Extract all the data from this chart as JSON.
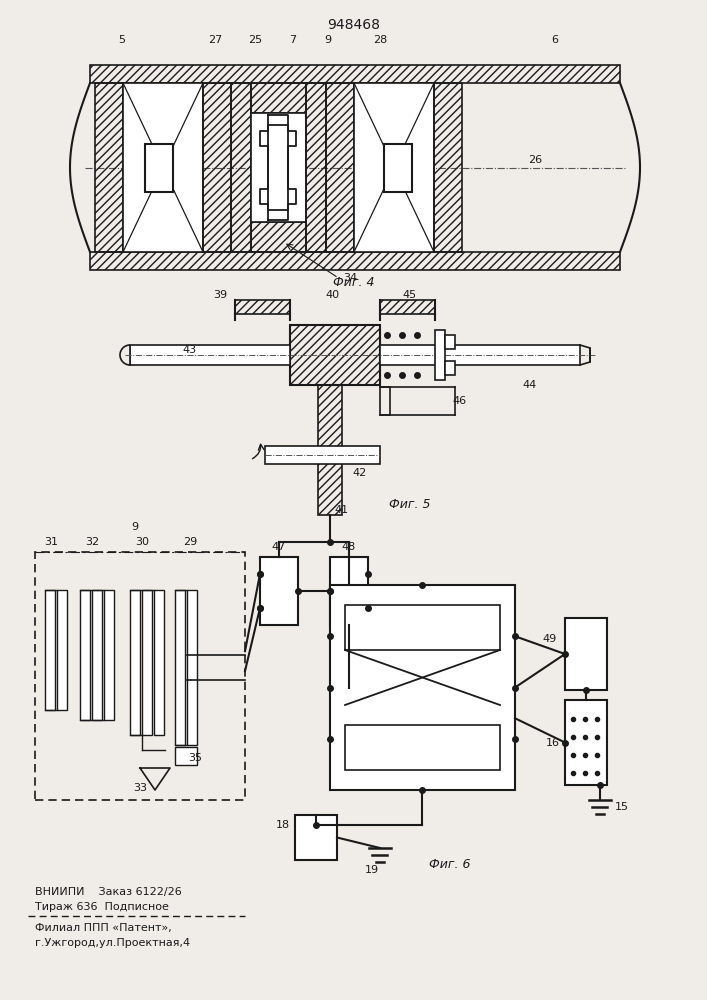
{
  "title": "948468",
  "bg": "#f0ede8",
  "lc": "#1a1a1a",
  "fig4_label": "Фиг. 4",
  "fig5_label": "Фиг. 5",
  "fig6_label": "Фиг. 6",
  "footer1": "ВНИИПИ    Заказ 6122/26",
  "footer2": "Тираж 636  Подписное",
  "footer4": "Филиал ППП «Патент»,",
  "footer5": "г.Ужгород,ул.Проектная,4"
}
